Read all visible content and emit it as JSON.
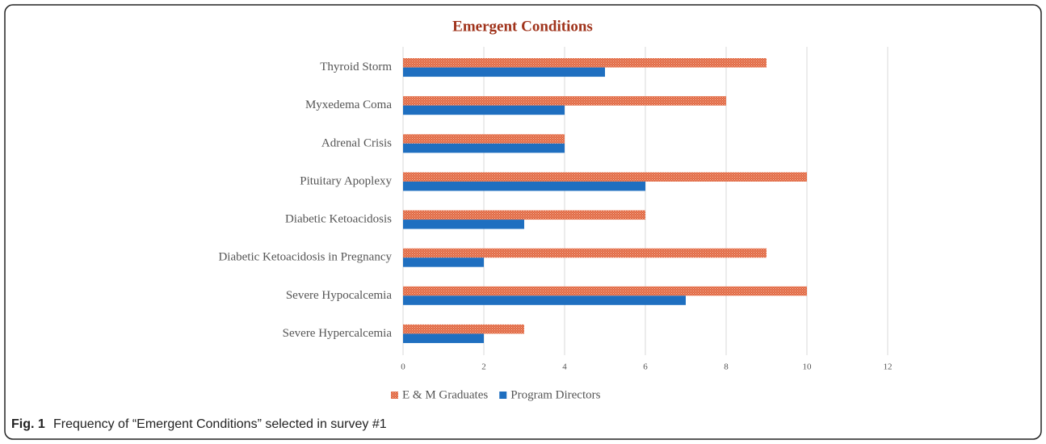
{
  "chart_data": {
    "type": "hbar",
    "title": "Emergent Conditions",
    "categories": [
      "Thyroid Storm",
      "Myxedema Coma",
      "Adrenal Crisis",
      "Pituitary Apoplexy",
      "Diabetic Ketoacidosis",
      "Diabetic Ketoacidosis in Pregnancy",
      "Severe Hypocalcemia",
      "Severe Hypercalcemia"
    ],
    "series": [
      {
        "name": "E & M Graduates",
        "color": "#e0653f",
        "hatched": true,
        "values": [
          9,
          8,
          4,
          10,
          6,
          9,
          10,
          3
        ]
      },
      {
        "name": "Program Directors",
        "color": "#1f6fc0",
        "hatched": false,
        "values": [
          5,
          4,
          4,
          6,
          3,
          2,
          7,
          2
        ]
      }
    ],
    "xlim": [
      0,
      12
    ],
    "xticks": [
      0,
      2,
      4,
      6,
      8,
      10,
      12
    ],
    "grid": true,
    "legend": "bottom"
  },
  "caption": {
    "label": "Fig. 1",
    "text": "Frequency of “Emergent Conditions” selected in survey #1"
  }
}
